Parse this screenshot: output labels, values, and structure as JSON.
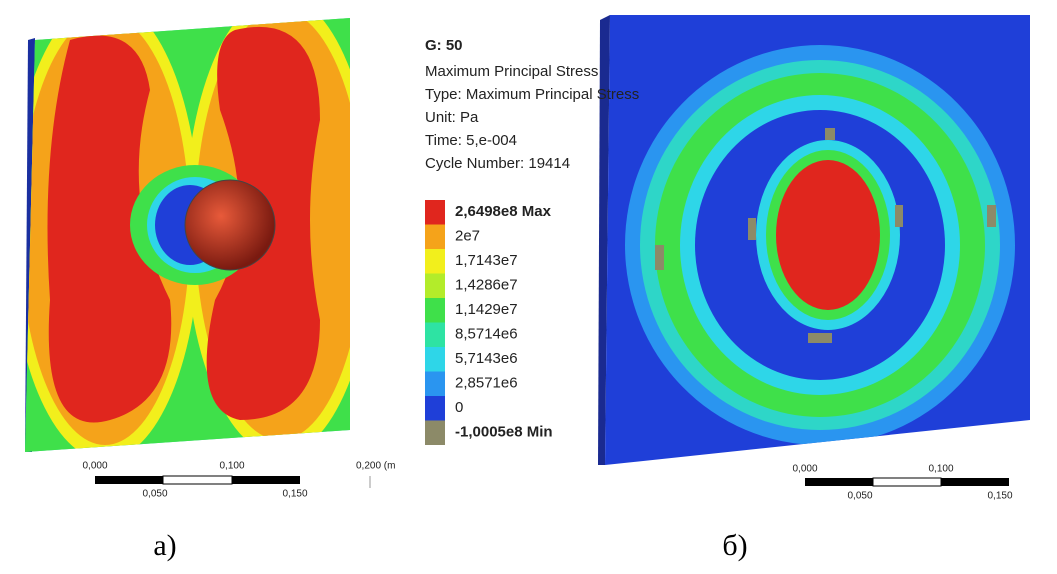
{
  "legend": {
    "title": "G: 50",
    "lines": [
      "Maximum Principal Stress",
      "Type: Maximum Principal Stress",
      "Unit: Pa",
      "Time: 5,e-004",
      "Cycle Number: 19414"
    ],
    "entries": [
      {
        "label": "2,6498e8 Max",
        "color": "#e0261e"
      },
      {
        "label": "2e7",
        "color": "#f5a31a"
      },
      {
        "label": "1,7143e7",
        "color": "#f2ef1c"
      },
      {
        "label": "1,4286e7",
        "color": "#b3ec2a"
      },
      {
        "label": "1,1429e7",
        "color": "#3fe04a"
      },
      {
        "label": "8,5714e6",
        "color": "#2ee3a3"
      },
      {
        "label": "5,7143e6",
        "color": "#2ed6e8"
      },
      {
        "label": "2,8571e6",
        "color": "#2a95f0"
      },
      {
        "label": "0",
        "color": "#1f3fd8"
      },
      {
        "label": "-1,0005e8 Min",
        "color": "#8c8a68"
      }
    ]
  },
  "scale_left": {
    "top": [
      "0,000",
      "0,100",
      "0,200 (m"
    ],
    "bottom": [
      "0,050",
      "0,150"
    ]
  },
  "scale_right": {
    "top": [
      "0,000",
      "0,100"
    ],
    "bottom": [
      "0,050",
      "0,150"
    ]
  },
  "captions": [
    "а)",
    "б)"
  ]
}
